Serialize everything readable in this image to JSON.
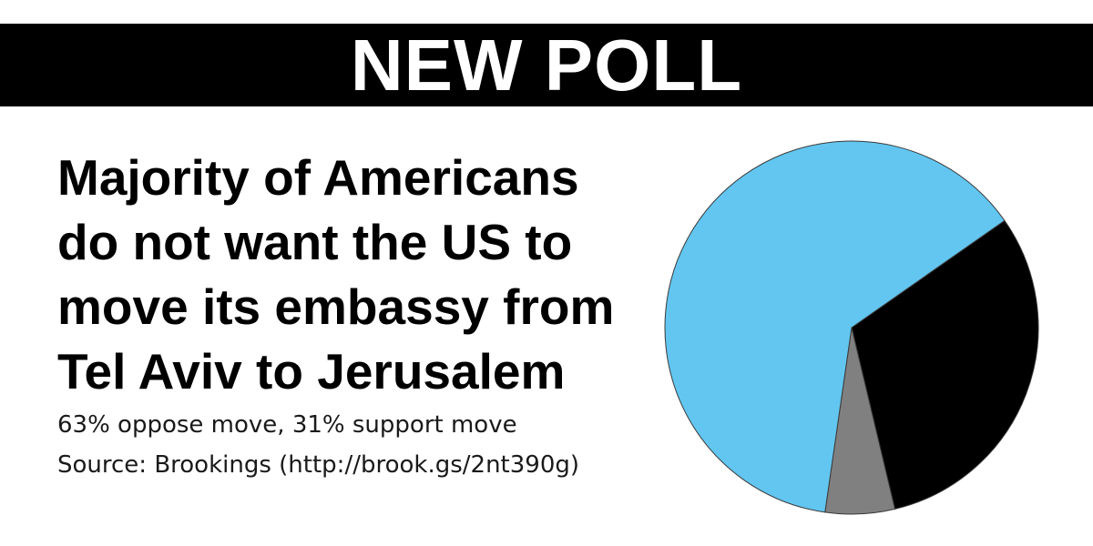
{
  "banner": {
    "title": "NEW POLL"
  },
  "headline": {
    "lines": [
      "Majority of Americans",
      "do not want the US to",
      "move its embassy from",
      "Tel Aviv to Jerusalem"
    ]
  },
  "subtext": {
    "stat": "63% oppose move, 31% support move",
    "source": "Source: Brookings (http://brook.gs/2nt390g)"
  },
  "colors": {
    "oppose": "#62c6f0",
    "support": "#000000",
    "other": "#808080",
    "banner": "#000000"
  },
  "chart_data": {
    "type": "pie",
    "slices": [
      {
        "value": 63,
        "color": "#000000"
      },
      {
        "value": 31,
        "color": "#000000"
      },
      {
        "value": 6,
        "color": "#808080"
      }
    ]
  }
}
